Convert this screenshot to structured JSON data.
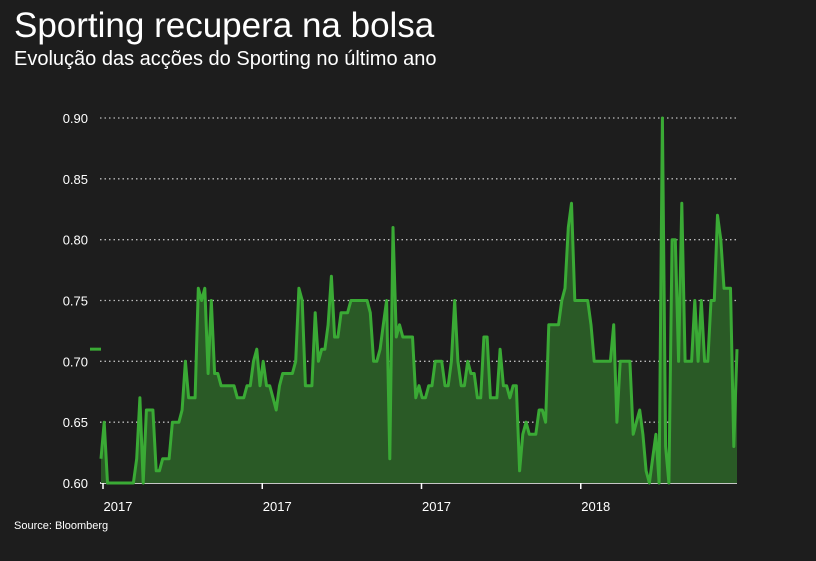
{
  "title": "Sporting recupera na bolsa",
  "subtitle": "Evolução das acções do Sporting no último ano",
  "source": "Source: Bloomberg",
  "colors": {
    "line": "#3aaa35",
    "area": "#2a5a26",
    "background": "#1d1d1d",
    "grid": "#bbbbbb",
    "text": "#ffffff"
  },
  "chart_data": {
    "type": "area",
    "title": "Sporting recupera na bolsa",
    "subtitle": "Evolução das acções do Sporting no último ano",
    "xlabel": "",
    "ylabel": "",
    "ylim": [
      0.6,
      0.9
    ],
    "yticks": [
      "0.60",
      "0.65",
      "0.70",
      "0.75",
      "0.80",
      "0.85",
      "0.90"
    ],
    "xtick_labels": [
      "2017",
      "2017",
      "2017",
      "2018"
    ],
    "grid": true,
    "legend": "none",
    "series": [
      {
        "values": [
          0.62,
          0.65,
          0.6,
          0.6,
          0.6,
          0.6,
          0.6,
          0.6,
          0.6,
          0.6,
          0.6,
          0.62,
          0.67,
          0.6,
          0.66,
          0.66,
          0.66,
          0.61,
          0.61,
          0.62,
          0.62,
          0.62,
          0.65,
          0.65,
          0.65,
          0.66,
          0.7,
          0.67,
          0.67,
          0.67,
          0.76,
          0.75,
          0.76,
          0.69,
          0.75,
          0.69,
          0.69,
          0.68,
          0.68,
          0.68,
          0.68,
          0.68,
          0.67,
          0.67,
          0.67,
          0.68,
          0.68,
          0.7,
          0.71,
          0.68,
          0.7,
          0.68,
          0.68,
          0.67,
          0.66,
          0.68,
          0.69,
          0.69,
          0.69,
          0.69,
          0.7,
          0.76,
          0.75,
          0.68,
          0.68,
          0.68,
          0.74,
          0.7,
          0.71,
          0.71,
          0.73,
          0.77,
          0.72,
          0.72,
          0.74,
          0.74,
          0.74,
          0.75,
          0.75,
          0.75,
          0.75,
          0.75,
          0.75,
          0.74,
          0.7,
          0.7,
          0.71,
          0.73,
          0.75,
          0.62,
          0.81,
          0.72,
          0.73,
          0.72,
          0.72,
          0.72,
          0.72,
          0.67,
          0.68,
          0.67,
          0.67,
          0.68,
          0.68,
          0.7,
          0.7,
          0.7,
          0.68,
          0.68,
          0.7,
          0.75,
          0.7,
          0.68,
          0.68,
          0.7,
          0.69,
          0.69,
          0.67,
          0.67,
          0.72,
          0.72,
          0.67,
          0.67,
          0.67,
          0.71,
          0.68,
          0.68,
          0.67,
          0.68,
          0.68,
          0.61,
          0.64,
          0.65,
          0.64,
          0.64,
          0.64,
          0.66,
          0.66,
          0.65,
          0.73,
          0.73,
          0.73,
          0.73,
          0.75,
          0.76,
          0.81,
          0.83,
          0.75,
          0.75,
          0.75,
          0.75,
          0.75,
          0.73,
          0.7,
          0.7,
          0.7,
          0.7,
          0.7,
          0.7,
          0.73,
          0.65,
          0.7,
          0.7,
          0.7,
          0.7,
          0.64,
          0.65,
          0.66,
          0.64,
          0.61,
          0.6,
          0.62,
          0.64,
          0.6,
          0.9,
          0.63,
          0.6,
          0.8,
          0.8,
          0.7,
          0.83,
          0.7,
          0.7,
          0.7,
          0.75,
          0.7,
          0.75,
          0.7,
          0.7,
          0.75,
          0.75,
          0.82,
          0.8,
          0.76,
          0.76,
          0.76,
          0.63,
          0.71
        ]
      }
    ],
    "annotations": [
      {
        "type": "marker",
        "y": 0.71
      }
    ]
  }
}
